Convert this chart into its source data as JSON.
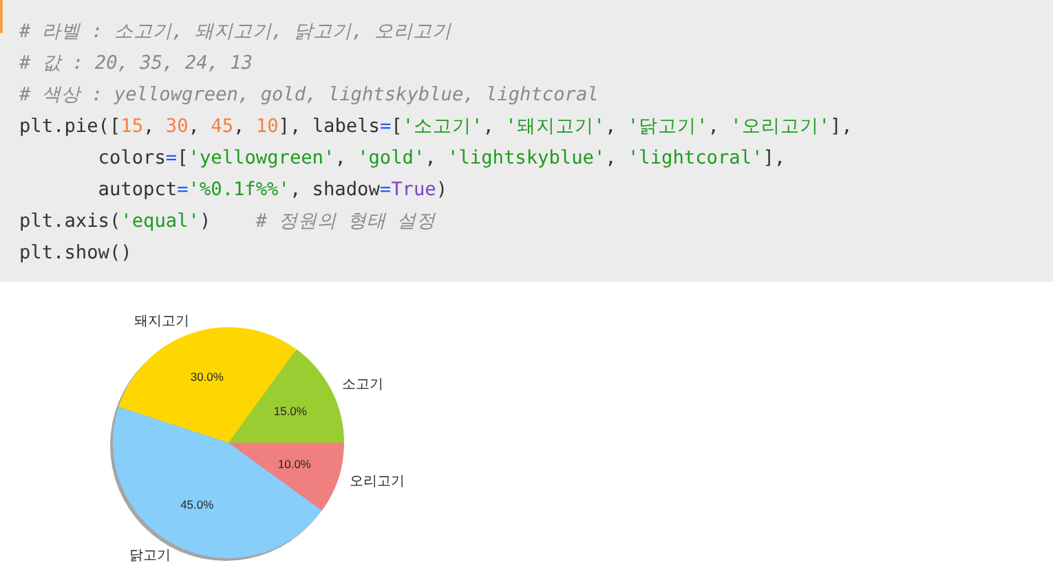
{
  "chart_data": {
    "type": "pie",
    "categories": [
      "소고기",
      "돼지고기",
      "닭고기",
      "오리고기"
    ],
    "values": [
      15,
      30,
      45,
      10
    ],
    "colors": [
      "#9acd32",
      "#ffd700",
      "#87cefa",
      "#f08080"
    ],
    "value_labels": [
      "15.0%",
      "30.0%",
      "45.0%",
      "10.0%"
    ],
    "annotations": [
      "# 라벨 : 소고기, 돼지고기, 닭고기, 오리고기",
      "# 값 : 20, 35, 24, 13",
      "# 색상 : yellowgreen, gold, lightskyblue, lightcoral",
      "plt.pie([15, 30, 45, 10], labels=['소고기', '돼지고기', '닭고기', '오리고기'],",
      "       colors=['yellowgreen', 'gold', 'lightskyblue', 'lightcoral'],",
      "       autopct='%0.1f%%', shadow=True)",
      "plt.axis('equal')    # 정원의 형태 설정",
      "plt.show()"
    ]
  }
}
